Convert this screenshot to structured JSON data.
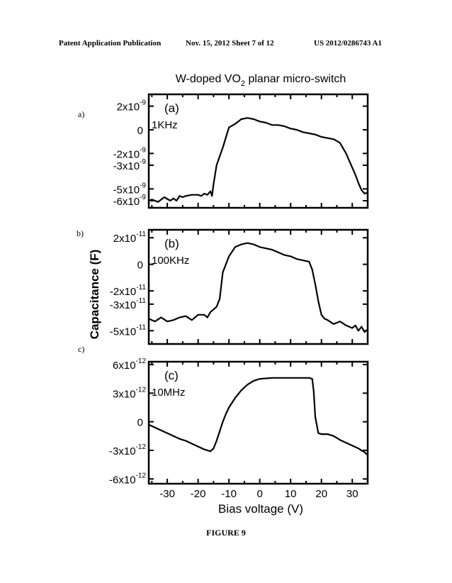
{
  "header": {
    "left": "Patent Application Publication",
    "middle": "Nov. 15, 2012  Sheet 7 of 12",
    "right": "US 2012/0286743 A1"
  },
  "figure_caption": "FIGURE 9",
  "panel_letters": [
    "a)",
    "b)",
    "c)"
  ],
  "chart_data": {
    "type": "line",
    "title_main": "W-doped VO",
    "title_sub": "2",
    "title_rest": " planar micro-switch",
    "ylabel": "Capacitance (F)",
    "xlabel": "Bias voltage (V)",
    "x_ticks": [
      -30,
      -20,
      -10,
      0,
      10,
      20,
      30
    ],
    "x_tick_labels": [
      "-30",
      "-20",
      "-10",
      "0",
      "10",
      "20",
      "30"
    ],
    "xlim": [
      -36,
      35
    ],
    "panels": [
      {
        "label": "(a)",
        "frequency": "1KHz",
        "ylim": [
          -6.6e-09,
          3e-09
        ],
        "y_ticks": [
          {
            "value": 2e-09,
            "mantissa": "2x10",
            "exp": "-9"
          },
          {
            "value": 0,
            "mantissa": "0",
            "exp": ""
          },
          {
            "value": -2e-09,
            "mantissa": "-2x10",
            "exp": "-9"
          },
          {
            "value": -3e-09,
            "mantissa": "-3x10",
            "exp": "-9"
          },
          {
            "value": -5e-09,
            "mantissa": "-5x10",
            "exp": "-9"
          },
          {
            "value": -6e-09,
            "mantissa": "-6x10",
            "exp": "-9"
          }
        ],
        "x": [
          -36,
          -35,
          -33,
          -31,
          -29,
          -28,
          -27,
          -26,
          -25,
          -24,
          -22,
          -20,
          -19,
          -18,
          -17,
          -16,
          -15.5,
          -15,
          -14,
          -12,
          -10,
          -8,
          -6,
          -4,
          -2,
          0,
          2,
          4,
          6,
          8,
          10,
          12,
          14,
          16,
          18,
          20,
          22,
          24,
          26,
          28,
          30,
          31,
          32,
          33,
          34,
          35
        ],
        "y": [
          -6e-09,
          -5.9e-09,
          -6.1e-09,
          -5.7e-09,
          -6e-09,
          -5.8e-09,
          -6e-09,
          -5.6e-09,
          -5.7e-09,
          -5.6e-09,
          -5.5e-09,
          -5.5e-09,
          -5.6e-09,
          -5.4e-09,
          -5.5e-09,
          -5.2e-09,
          -5.6e-09,
          -4.6e-09,
          -3e-09,
          -1.5e-09,
          2e-10,
          5e-10,
          9e-10,
          1e-09,
          9e-10,
          7e-10,
          6e-10,
          4e-10,
          4e-10,
          3e-10,
          1e-10,
          0.0,
          -2e-10,
          -3e-10,
          -4e-10,
          -6e-10,
          -7e-10,
          -8e-10,
          -1.1e-09,
          -2e-09,
          -3.2e-09,
          -3.8e-09,
          -4.5e-09,
          -5.1e-09,
          -5.4e-09,
          -5.3e-09
        ]
      },
      {
        "label": "(b)",
        "frequency": "100KHz",
        "ylim": [
          -6e-11,
          2.6e-11
        ],
        "y_ticks": [
          {
            "value": 2e-11,
            "mantissa": "2x10",
            "exp": "-11"
          },
          {
            "value": 0,
            "mantissa": "0",
            "exp": ""
          },
          {
            "value": -2e-11,
            "mantissa": "-2x10",
            "exp": "-11"
          },
          {
            "value": -3e-11,
            "mantissa": "-3x10",
            "exp": "-11"
          },
          {
            "value": -5e-11,
            "mantissa": "-5x10",
            "exp": "-11"
          }
        ],
        "x": [
          -36,
          -34,
          -32,
          -30,
          -28,
          -26,
          -24,
          -22,
          -20,
          -18,
          -17,
          -16,
          -15,
          -14,
          -13,
          -12,
          -10,
          -8,
          -6,
          -4,
          -2,
          0,
          2,
          4,
          6,
          8,
          10,
          12,
          14,
          16,
          17,
          18,
          19,
          20,
          21,
          22,
          24,
          26,
          28,
          30,
          31,
          32,
          33,
          34,
          35
        ],
        "y": [
          -4.1e-11,
          -4.3e-11,
          -4e-11,
          -4.3e-11,
          -4.2e-11,
          -4e-11,
          -3.9e-11,
          -4.2e-11,
          -3.8e-11,
          -3.8e-11,
          -4e-11,
          -3.6e-11,
          -3.4e-11,
          -3.2e-11,
          -2.6e-11,
          -6e-12,
          6e-12,
          1.3e-11,
          1.5e-11,
          1.6e-11,
          1.5e-11,
          1.3e-11,
          1.2e-11,
          1.1e-11,
          9e-12,
          7e-12,
          6e-12,
          4e-12,
          3e-12,
          2e-12,
          -4e-12,
          -1.5e-11,
          -2.8e-11,
          -3.8e-11,
          -4.1e-11,
          -4.2e-11,
          -4.5e-11,
          -4.3e-11,
          -4.6e-11,
          -4.8e-11,
          -4.6e-11,
          -5e-11,
          -4.7e-11,
          -5.1e-11,
          -4.9e-11
        ]
      },
      {
        "label": "(c)",
        "frequency": "10MHz",
        "ylim": [
          -6.5e-12,
          6.3e-12
        ],
        "y_ticks": [
          {
            "value": 6e-12,
            "mantissa": "6x10",
            "exp": "-12"
          },
          {
            "value": 3e-12,
            "mantissa": "3x10",
            "exp": "-12"
          },
          {
            "value": 0,
            "mantissa": "0",
            "exp": ""
          },
          {
            "value": -3e-12,
            "mantissa": "-3x10",
            "exp": "-12"
          },
          {
            "value": -6e-12,
            "mantissa": "-6x10",
            "exp": "-12"
          }
        ],
        "x": [
          -36,
          -34,
          -32,
          -30,
          -28,
          -26,
          -24,
          -22,
          -20,
          -18,
          -16,
          -15,
          -14,
          -13,
          -12,
          -11,
          -10,
          -8,
          -6,
          -4,
          -2,
          0,
          4,
          8,
          12,
          16,
          17,
          17.5,
          18,
          19,
          20,
          22,
          24,
          26,
          28,
          30,
          32,
          34,
          35
        ],
        "y": [
          -3e-13,
          -6e-13,
          -9e-13,
          -1.2e-12,
          -1.5e-12,
          -1.8e-12,
          -2e-12,
          -2.3e-12,
          -2.6e-12,
          -2.9e-12,
          -3.1e-12,
          -2.8e-12,
          -2e-12,
          -1e-12,
          0.0,
          8e-13,
          1.5e-12,
          2.5e-12,
          3.3e-12,
          3.9e-12,
          4.3e-12,
          4.5e-12,
          4.6e-12,
          4.6e-12,
          4.6e-12,
          4.6e-12,
          4.5e-12,
          3.2e-12,
          5e-13,
          -1.2e-12,
          -1.3e-12,
          -1.3e-12,
          -1.5e-12,
          -1.9e-12,
          -2.2e-12,
          -2.5e-12,
          -2.8e-12,
          -3.2e-12,
          -3.5e-12
        ]
      }
    ]
  }
}
